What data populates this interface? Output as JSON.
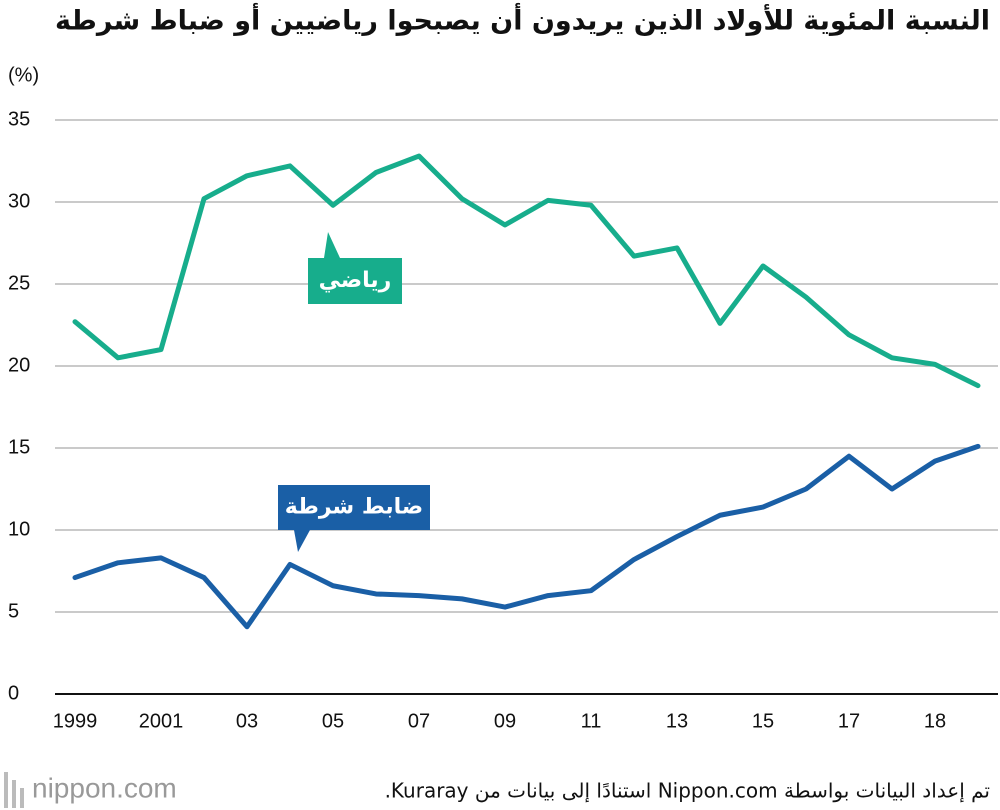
{
  "chart_data": {
    "type": "line",
    "title": "النسبة المئوية للأولاد الذين يريدون أن يصبحوا رياضيين أو ضباط شرطة",
    "y_unit": "(%)",
    "source": "تم إعداد البيانات بواسطة Nippon.com استنادًا إلى بيانات من Kuraray.",
    "logo": "nippon.com",
    "categories": [
      "1999",
      null,
      "2001",
      null,
      "03",
      null,
      "05",
      null,
      "07",
      null,
      "09",
      null,
      "11",
      null,
      "13",
      null,
      "15",
      null,
      "17",
      null,
      "18",
      null
    ],
    "series": [
      {
        "name": "رياضي",
        "color": "#17ad8c",
        "values": [
          22.7,
          20.5,
          21.0,
          30.2,
          31.6,
          32.2,
          29.8,
          31.8,
          32.8,
          30.2,
          28.6,
          30.1,
          29.8,
          26.7,
          27.2,
          22.6,
          26.1,
          24.2,
          21.9,
          20.5,
          20.1,
          18.8
        ]
      },
      {
        "name": "ضابط شرطة",
        "color": "#1a5fa6",
        "values": [
          7.1,
          8.0,
          8.3,
          7.1,
          4.1,
          7.9,
          6.6,
          6.1,
          6.0,
          5.8,
          5.3,
          6.0,
          6.3,
          8.2,
          9.6,
          10.9,
          11.4,
          12.5,
          14.5,
          12.5,
          14.2,
          15.1
        ]
      }
    ],
    "ylim": [
      0,
      35
    ],
    "yticks": [
      0,
      5,
      10,
      15,
      20,
      25,
      30,
      35
    ],
    "grid": true
  }
}
